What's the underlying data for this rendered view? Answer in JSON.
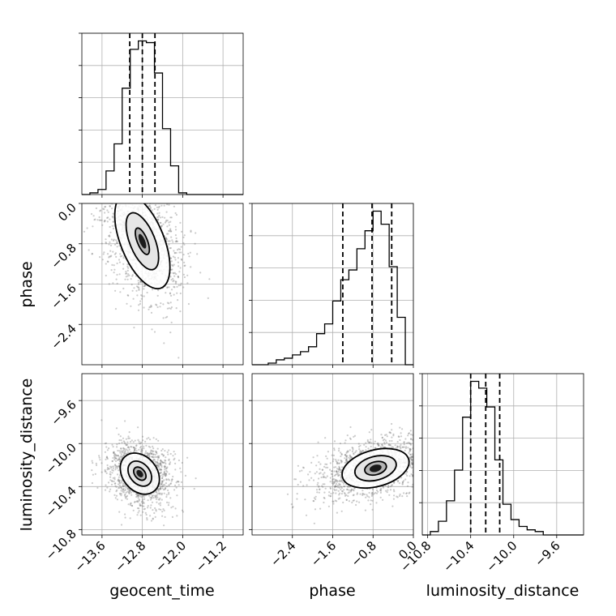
{
  "chart_data": {
    "type": "corner",
    "parameters": [
      "geocent_time",
      "phase",
      "luminosity_distance"
    ],
    "axis_labels": {
      "geocent_time": "geocent_time",
      "phase": "phase",
      "luminosity_distance": "luminosity_distance"
    },
    "ranges": {
      "geocent_time": [
        -14.0,
        -10.8
      ],
      "phase": [
        -3.2,
        0.0
      ],
      "luminosity_distance": [
        -10.85,
        -9.35
      ]
    },
    "ticks": {
      "geocent_time": [
        "−13.6",
        "−12.8",
        "−12.0",
        "−11.2"
      ],
      "phase": [
        "−2.4",
        "−1.6",
        "−0.8",
        "0.0"
      ],
      "phase_y": [
        "0.0",
        "−0.8",
        "−1.6",
        "−2.4"
      ],
      "luminosity_distance": [
        "−10.8",
        "−10.4",
        "−10.0",
        "−9.6"
      ]
    },
    "quantiles": {
      "geocent_time": [
        -13.05,
        -12.8,
        -12.55
      ],
      "phase": [
        -1.4,
        -0.82,
        -0.43
      ],
      "luminosity_distance": [
        -10.4,
        -10.26,
        -10.13
      ]
    },
    "histograms": {
      "geocent_time": {
        "bin_edges": [
          -14.0,
          -13.84,
          -13.68,
          -13.52,
          -13.36,
          -13.2,
          -13.04,
          -12.88,
          -12.72,
          -12.56,
          -12.4,
          -12.24,
          -12.08,
          -11.92,
          -11.76,
          -11.6,
          -11.44,
          -11.28,
          -11.12,
          -10.96,
          -10.8
        ],
        "counts": [
          0,
          1,
          3,
          14,
          30,
          63,
          86,
          91,
          90,
          72,
          39,
          17,
          1,
          0,
          0,
          0,
          0,
          0,
          0,
          0
        ]
      },
      "phase": {
        "bin_edges": [
          -3.2,
          -3.04,
          -2.88,
          -2.72,
          -2.56,
          -2.4,
          -2.24,
          -2.08,
          -1.92,
          -1.76,
          -1.6,
          -1.44,
          -1.28,
          -1.12,
          -0.96,
          -0.8,
          -0.64,
          -0.48,
          -0.32,
          -0.16,
          0.0
        ],
        "counts": [
          0,
          0,
          1,
          3,
          4,
          6,
          8,
          11,
          19,
          25,
          39,
          52,
          58,
          71,
          82,
          94,
          86,
          60,
          29,
          0
        ]
      },
      "luminosity_distance": {
        "bin_edges": [
          -10.85,
          -10.775,
          -10.7,
          -10.625,
          -10.55,
          -10.475,
          -10.4,
          -10.325,
          -10.25,
          -10.175,
          -10.1,
          -10.025,
          -9.95,
          -9.875,
          -9.8,
          -9.725,
          -9.65,
          -9.575,
          -9.5,
          -9.425,
          -9.35
        ],
        "counts": [
          0,
          2,
          8,
          20,
          38,
          69,
          90,
          86,
          75,
          44,
          18,
          9,
          5,
          3,
          2,
          0,
          0,
          0,
          0,
          0
        ]
      }
    },
    "pairs": [
      {
        "x": "geocent_time",
        "y": "phase",
        "peak": [
          -12.8,
          -0.75
        ],
        "contour_sigmas_x": [
          0.1,
          0.25,
          0.43
        ],
        "contour_sigmas_y": [
          0.28,
          0.6,
          1.0
        ],
        "tilt_deg": 22,
        "scatter_sigma": [
          0.35,
          0.6
        ]
      },
      {
        "x": "geocent_time",
        "y": "luminosity_distance",
        "peak": [
          -12.85,
          -10.28
        ],
        "contour_sigmas_x": [
          0.1,
          0.2,
          0.34
        ],
        "contour_sigmas_y": [
          0.07,
          0.13,
          0.21
        ],
        "tilt_deg": 40,
        "scatter_sigma": [
          0.28,
          0.17
        ]
      },
      {
        "x": "phase",
        "y": "luminosity_distance",
        "peak": [
          -0.75,
          -10.23
        ],
        "contour_sigmas_x": [
          0.22,
          0.42,
          0.68
        ],
        "contour_sigmas_y": [
          0.06,
          0.11,
          0.17
        ],
        "tilt_deg": 15,
        "scatter_sigma": [
          0.65,
          0.13
        ]
      }
    ],
    "grid": true
  }
}
